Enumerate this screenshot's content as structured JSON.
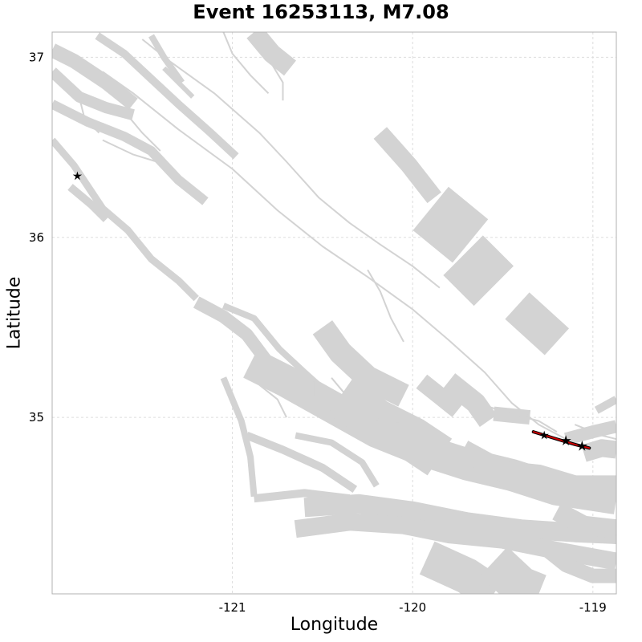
{
  "title": "Event 16253113, M7.08",
  "xlabel": "Longitude",
  "ylabel": "Latitude",
  "x_ticks": [
    {
      "value": -121,
      "label": "-121"
    },
    {
      "value": -120,
      "label": "-120"
    },
    {
      "value": -119,
      "label": "-119"
    }
  ],
  "y_ticks": [
    {
      "value": 37,
      "label": "37"
    },
    {
      "value": 36,
      "label": "36"
    },
    {
      "value": 35,
      "label": "35"
    }
  ],
  "chart_data": {
    "type": "map",
    "xlim": [
      -122.0,
      -118.87
    ],
    "ylim": [
      34.02,
      37.14
    ],
    "grid": true,
    "colors": {
      "fault": "#d3d3d3",
      "rupture": "#d00000",
      "hypocenter": "#000000",
      "grid": "#dddddd"
    },
    "fault_bands": [
      {
        "w": 14,
        "pts": [
          [
            -122.0,
            36.92
          ],
          [
            -121.85,
            36.78
          ],
          [
            -121.7,
            36.72
          ],
          [
            -121.55,
            36.68
          ]
        ]
      },
      {
        "w": 18,
        "pts": [
          [
            -122.0,
            37.04
          ],
          [
            -121.88,
            36.98
          ],
          [
            -121.7,
            36.86
          ],
          [
            -121.55,
            36.74
          ]
        ]
      },
      {
        "w": 10,
        "pts": [
          [
            -121.75,
            37.12
          ],
          [
            -121.6,
            37.02
          ],
          [
            -121.45,
            36.88
          ],
          [
            -121.3,
            36.74
          ],
          [
            -121.12,
            36.58
          ],
          [
            -120.98,
            36.45
          ]
        ]
      },
      {
        "w": 12,
        "pts": [
          [
            -122.0,
            36.74
          ],
          [
            -121.8,
            36.64
          ],
          [
            -121.6,
            36.56
          ],
          [
            -121.45,
            36.48
          ],
          [
            -121.3,
            36.32
          ],
          [
            -121.15,
            36.2
          ]
        ]
      },
      {
        "w": 10,
        "pts": [
          [
            -121.9,
            36.28
          ],
          [
            -121.78,
            36.18
          ],
          [
            -121.7,
            36.1
          ]
        ]
      },
      {
        "w": 9,
        "pts": [
          [
            -122.0,
            36.54
          ],
          [
            -121.88,
            36.4
          ],
          [
            -121.72,
            36.16
          ],
          [
            -121.58,
            36.04
          ],
          [
            -121.45,
            35.88
          ],
          [
            -121.3,
            35.76
          ],
          [
            -121.2,
            35.66
          ]
        ]
      },
      {
        "w": 8,
        "pts": [
          [
            -121.45,
            37.12
          ],
          [
            -121.38,
            37.0
          ],
          [
            -121.28,
            36.86
          ]
        ]
      },
      {
        "w": 6,
        "pts": [
          [
            -121.38,
            36.94
          ],
          [
            -121.22,
            36.78
          ]
        ]
      },
      {
        "w": 24,
        "pts": [
          [
            -120.88,
            37.14
          ],
          [
            -120.78,
            37.02
          ],
          [
            -120.68,
            36.94
          ]
        ]
      },
      {
        "w": 22,
        "pts": [
          [
            -120.18,
            36.58
          ],
          [
            -120.02,
            36.4
          ],
          [
            -119.88,
            36.22
          ]
        ]
      },
      {
        "w": 70,
        "pts": [
          [
            -119.9,
            36.16
          ],
          [
            -119.68,
            35.98
          ]
        ]
      },
      {
        "w": 70,
        "pts": [
          [
            -119.72,
            35.9
          ],
          [
            -119.55,
            35.73
          ]
        ]
      },
      {
        "w": 45,
        "pts": [
          [
            -119.42,
            35.62
          ],
          [
            -119.2,
            35.42
          ]
        ]
      },
      {
        "w": 16,
        "pts": [
          [
            -121.2,
            35.64
          ],
          [
            -121.05,
            35.56
          ],
          [
            -120.92,
            35.46
          ],
          [
            -120.8,
            35.3
          ],
          [
            -120.68,
            35.18
          ],
          [
            -120.52,
            35.1
          ],
          [
            -120.35,
            35.02
          ]
        ]
      },
      {
        "w": 8,
        "pts": [
          [
            -121.05,
            35.62
          ],
          [
            -120.88,
            35.55
          ],
          [
            -120.74,
            35.38
          ],
          [
            -120.6,
            35.25
          ],
          [
            -120.5,
            35.16
          ]
        ]
      },
      {
        "w": 8,
        "pts": [
          [
            -121.05,
            35.22
          ],
          [
            -120.95,
            34.98
          ],
          [
            -120.9,
            34.78
          ],
          [
            -120.88,
            34.56
          ]
        ]
      },
      {
        "w": 10,
        "pts": [
          [
            -120.92,
            34.9
          ],
          [
            -120.72,
            34.82
          ],
          [
            -120.5,
            34.72
          ],
          [
            -120.32,
            34.6
          ]
        ]
      },
      {
        "w": 8,
        "pts": [
          [
            -120.65,
            34.9
          ],
          [
            -120.45,
            34.86
          ],
          [
            -120.28,
            34.75
          ],
          [
            -120.2,
            34.62
          ]
        ]
      },
      {
        "w": 10,
        "pts": [
          [
            -120.88,
            34.55
          ],
          [
            -120.6,
            34.58
          ],
          [
            -120.35,
            34.55
          ]
        ]
      },
      {
        "w": 40,
        "pts": [
          [
            -120.9,
            35.3
          ],
          [
            -120.7,
            35.2
          ],
          [
            -120.45,
            35.06
          ],
          [
            -120.2,
            34.92
          ],
          [
            -119.95,
            34.82
          ],
          [
            -119.7,
            34.74
          ],
          [
            -119.45,
            34.68
          ],
          [
            -119.2,
            34.6
          ],
          [
            -118.87,
            34.55
          ]
        ]
      },
      {
        "w": 30,
        "pts": [
          [
            -120.5,
            35.5
          ],
          [
            -120.4,
            35.36
          ],
          [
            -120.25,
            35.22
          ],
          [
            -120.05,
            35.12
          ]
        ]
      },
      {
        "w": 55,
        "pts": [
          [
            -120.4,
            35.12
          ],
          [
            -120.2,
            34.98
          ],
          [
            -120.0,
            34.88
          ],
          [
            -119.85,
            34.78
          ]
        ]
      },
      {
        "w": 22,
        "pts": [
          [
            -119.95,
            35.2
          ],
          [
            -119.85,
            35.12
          ],
          [
            -119.75,
            35.04
          ]
        ]
      },
      {
        "w": 26,
        "pts": [
          [
            -119.8,
            35.2
          ],
          [
            -119.65,
            35.08
          ],
          [
            -119.58,
            34.98
          ]
        ]
      },
      {
        "w": 18,
        "pts": [
          [
            -119.55,
            35.02
          ],
          [
            -119.35,
            35.0
          ]
        ]
      },
      {
        "w": 26,
        "pts": [
          [
            -119.72,
            34.82
          ],
          [
            -119.5,
            34.7
          ],
          [
            -119.3,
            34.68
          ],
          [
            -119.1,
            34.62
          ],
          [
            -118.87,
            34.62
          ]
        ]
      },
      {
        "w": 24,
        "pts": [
          [
            -120.6,
            34.5
          ],
          [
            -120.3,
            34.52
          ],
          [
            -120.0,
            34.48
          ],
          [
            -119.7,
            34.42
          ],
          [
            -119.4,
            34.38
          ],
          [
            -119.1,
            34.36
          ],
          [
            -118.87,
            34.35
          ]
        ]
      },
      {
        "w": 22,
        "pts": [
          [
            -120.65,
            34.38
          ],
          [
            -120.35,
            34.42
          ],
          [
            -120.05,
            34.4
          ],
          [
            -119.8,
            34.35
          ],
          [
            -119.5,
            34.32
          ],
          [
            -119.2,
            34.26
          ],
          [
            -118.87,
            34.2
          ]
        ]
      },
      {
        "w": 45,
        "pts": [
          [
            -119.92,
            34.22
          ],
          [
            -119.7,
            34.12
          ],
          [
            -119.55,
            34.02
          ]
        ]
      },
      {
        "w": 50,
        "pts": [
          [
            -119.55,
            34.2
          ],
          [
            -119.4,
            34.06
          ],
          [
            -119.3,
            34.02
          ]
        ]
      },
      {
        "w": 18,
        "pts": [
          [
            -119.3,
            34.3
          ],
          [
            -119.15,
            34.18
          ],
          [
            -119.0,
            34.12
          ],
          [
            -118.87,
            34.12
          ]
        ]
      },
      {
        "w": 24,
        "pts": [
          [
            -119.2,
            34.48
          ],
          [
            -119.05,
            34.4
          ],
          [
            -118.87,
            34.38
          ]
        ]
      },
      {
        "w": 16,
        "pts": [
          [
            -119.15,
            34.88
          ],
          [
            -119.0,
            34.92
          ],
          [
            -118.87,
            34.95
          ]
        ]
      },
      {
        "w": 22,
        "pts": [
          [
            -119.05,
            34.8
          ],
          [
            -118.95,
            34.83
          ],
          [
            -118.87,
            34.82
          ]
        ]
      },
      {
        "w": 10,
        "pts": [
          [
            -118.98,
            35.04
          ],
          [
            -118.87,
            35.1
          ]
        ]
      }
    ],
    "fault_lines": [
      {
        "w": 2,
        "pts": [
          [
            -121.72,
            36.92
          ],
          [
            -121.55,
            36.8
          ],
          [
            -121.3,
            36.6
          ],
          [
            -121.0,
            36.38
          ],
          [
            -120.75,
            36.15
          ],
          [
            -120.5,
            35.95
          ],
          [
            -120.25,
            35.78
          ],
          [
            -120.0,
            35.6
          ],
          [
            -119.8,
            35.43
          ],
          [
            -119.6,
            35.25
          ],
          [
            -119.45,
            35.08
          ],
          [
            -119.3,
            34.96
          ],
          [
            -119.15,
            34.88
          ]
        ]
      },
      {
        "w": 2,
        "pts": [
          [
            -121.5,
            37.1
          ],
          [
            -121.35,
            36.98
          ],
          [
            -121.1,
            36.8
          ],
          [
            -120.85,
            36.58
          ],
          [
            -120.7,
            36.42
          ],
          [
            -120.52,
            36.22
          ],
          [
            -120.35,
            36.08
          ],
          [
            -120.18,
            35.96
          ],
          [
            -120.0,
            35.84
          ],
          [
            -119.85,
            35.72
          ]
        ]
      },
      {
        "w": 2,
        "pts": [
          [
            -121.05,
            37.14
          ],
          [
            -121.0,
            37.02
          ],
          [
            -120.9,
            36.9
          ],
          [
            -120.8,
            36.8
          ]
        ]
      },
      {
        "w": 2,
        "pts": [
          [
            -120.78,
            36.96
          ],
          [
            -120.72,
            36.86
          ],
          [
            -120.72,
            36.76
          ]
        ]
      },
      {
        "w": 2,
        "pts": [
          [
            -120.25,
            35.82
          ],
          [
            -120.18,
            35.7
          ],
          [
            -120.12,
            35.55
          ],
          [
            -120.05,
            35.42
          ]
        ]
      },
      {
        "w": 2,
        "pts": [
          [
            -121.72,
            36.54
          ],
          [
            -121.55,
            36.46
          ],
          [
            -121.42,
            36.42
          ]
        ]
      },
      {
        "w": 2,
        "pts": [
          [
            -121.6,
            36.7
          ],
          [
            -121.5,
            36.58
          ],
          [
            -121.4,
            36.48
          ]
        ]
      },
      {
        "w": 2,
        "pts": [
          [
            -121.85,
            36.78
          ],
          [
            -121.82,
            36.66
          ],
          [
            -121.74,
            36.58
          ]
        ]
      },
      {
        "w": 2,
        "pts": [
          [
            -120.85,
            35.18
          ],
          [
            -120.75,
            35.1
          ],
          [
            -120.7,
            35.0
          ]
        ]
      },
      {
        "w": 2,
        "pts": [
          [
            -120.45,
            35.22
          ],
          [
            -120.35,
            35.1
          ],
          [
            -120.25,
            35.0
          ],
          [
            -120.05,
            34.96
          ]
        ]
      },
      {
        "w": 2,
        "pts": [
          [
            -119.58,
            35.06
          ],
          [
            -119.45,
            35.02
          ],
          [
            -119.3,
            34.98
          ],
          [
            -119.2,
            34.92
          ]
        ]
      },
      {
        "w": 2,
        "pts": [
          [
            -119.1,
            34.96
          ],
          [
            -118.95,
            34.9
          ],
          [
            -118.87,
            34.88
          ]
        ]
      },
      {
        "w": 2,
        "pts": [
          [
            -120.55,
            35.2
          ],
          [
            -120.55,
            35.12
          ]
        ]
      }
    ],
    "rupture": {
      "pts": [
        [
          -119.33,
          34.92
        ],
        [
          -119.2,
          34.88
        ],
        [
          -119.1,
          34.85
        ],
        [
          -119.02,
          34.83
        ]
      ]
    },
    "hypocenters": [
      {
        "lon": -121.86,
        "lat": 36.34,
        "size": 6
      },
      {
        "lon": -119.27,
        "lat": 34.9,
        "size": 6
      },
      {
        "lon": -119.15,
        "lat": 34.87,
        "size": 7
      },
      {
        "lon": -119.06,
        "lat": 34.84,
        "size": 7
      }
    ]
  }
}
